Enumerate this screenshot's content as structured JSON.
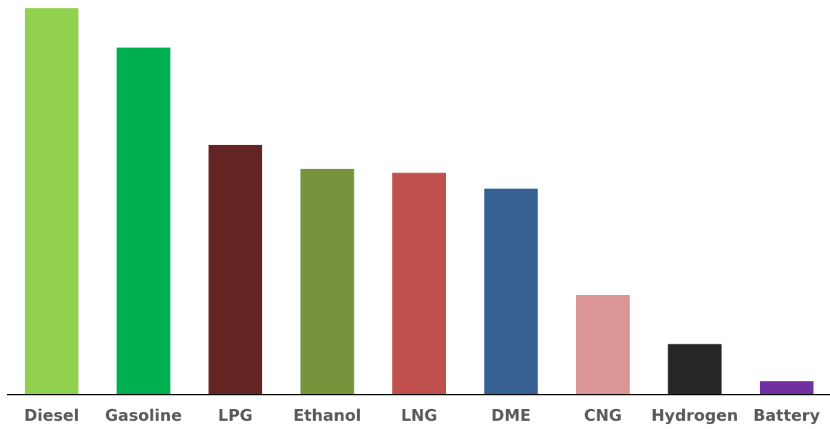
{
  "chart_data": {
    "type": "bar",
    "categories": [
      "Diesel",
      "Gasoline",
      "LPG",
      "Ethanol",
      "LNG",
      "DME",
      "CNG",
      "Hydrogen",
      "Battery"
    ],
    "values": [
      100,
      89.8,
      64.6,
      58.4,
      57.4,
      53.3,
      25.8,
      13.1,
      3.5
    ],
    "colors": [
      "#92d050",
      "#00b050",
      "#632523",
      "#77933c",
      "#c0504d",
      "#366092",
      "#d99694",
      "#262626",
      "#7030a0"
    ],
    "ylim": [
      0,
      100
    ],
    "grid": false,
    "legend": "none"
  }
}
